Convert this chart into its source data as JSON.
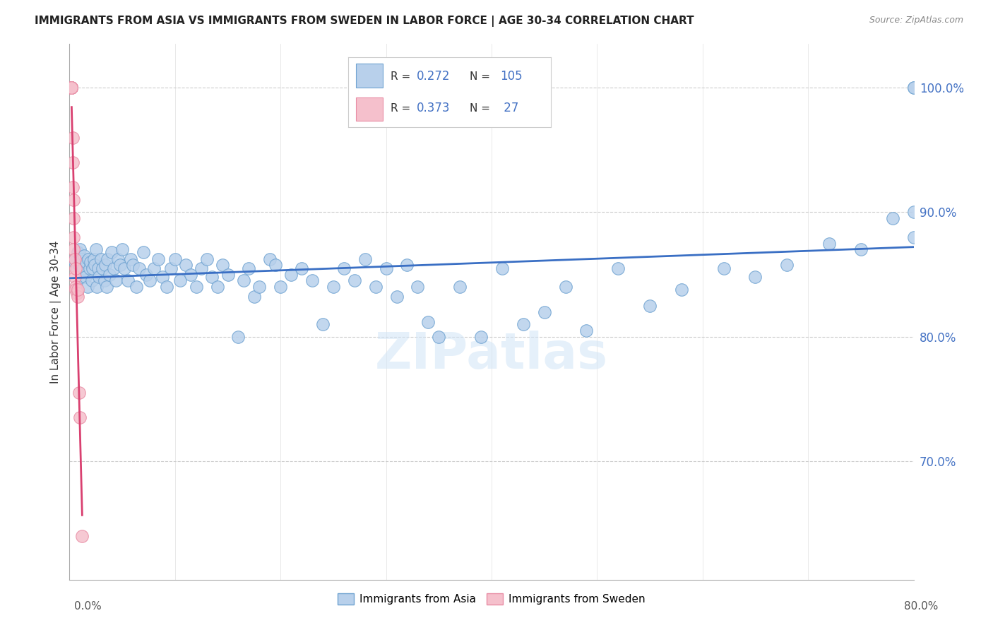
{
  "title": "IMMIGRANTS FROM ASIA VS IMMIGRANTS FROM SWEDEN IN LABOR FORCE | AGE 30-34 CORRELATION CHART",
  "source": "Source: ZipAtlas.com",
  "ylabel": "In Labor Force | Age 30-34",
  "xlim": [
    0.0,
    0.8
  ],
  "ylim": [
    0.605,
    1.035
  ],
  "ytick_values": [
    0.7,
    0.8,
    0.9,
    1.0
  ],
  "ytick_labels": [
    "70.0%",
    "80.0%",
    "90.0%",
    "100.0%"
  ],
  "x_axis_left_label": "0.0%",
  "x_axis_right_label": "80.0%",
  "blue_color": "#b8d0eb",
  "blue_edge_color": "#6fa3d1",
  "pink_color": "#f5c0cc",
  "pink_edge_color": "#e88ca4",
  "blue_line_color": "#3a6fc4",
  "pink_line_color": "#d94070",
  "R_blue": 0.272,
  "N_blue": 105,
  "R_pink": 0.373,
  "N_pink": 27,
  "watermark": "ZIPatlas",
  "legend_label_blue": "Immigrants from Asia",
  "legend_label_pink": "Immigrants from Sweden",
  "blue_x": [
    0.005,
    0.005,
    0.007,
    0.008,
    0.009,
    0.01,
    0.011,
    0.012,
    0.013,
    0.014,
    0.015,
    0.016,
    0.017,
    0.018,
    0.019,
    0.02,
    0.021,
    0.022,
    0.023,
    0.024,
    0.025,
    0.026,
    0.027,
    0.028,
    0.03,
    0.031,
    0.033,
    0.034,
    0.035,
    0.036,
    0.038,
    0.04,
    0.042,
    0.044,
    0.046,
    0.048,
    0.05,
    0.052,
    0.055,
    0.058,
    0.06,
    0.063,
    0.066,
    0.07,
    0.073,
    0.076,
    0.08,
    0.084,
    0.088,
    0.092,
    0.096,
    0.1,
    0.105,
    0.11,
    0.115,
    0.12,
    0.125,
    0.13,
    0.135,
    0.14,
    0.145,
    0.15,
    0.16,
    0.165,
    0.17,
    0.175,
    0.18,
    0.19,
    0.195,
    0.2,
    0.21,
    0.22,
    0.23,
    0.24,
    0.25,
    0.26,
    0.27,
    0.28,
    0.29,
    0.3,
    0.31,
    0.32,
    0.33,
    0.34,
    0.35,
    0.37,
    0.39,
    0.41,
    0.43,
    0.45,
    0.47,
    0.49,
    0.52,
    0.55,
    0.58,
    0.62,
    0.65,
    0.68,
    0.72,
    0.75,
    0.78,
    0.8,
    0.8,
    0.8,
    0.8
  ],
  "blue_y": [
    0.86,
    0.862,
    0.855,
    0.868,
    0.858,
    0.87,
    0.848,
    0.862,
    0.855,
    0.865,
    0.848,
    0.86,
    0.84,
    0.862,
    0.855,
    0.86,
    0.845,
    0.855,
    0.862,
    0.858,
    0.87,
    0.84,
    0.855,
    0.848,
    0.862,
    0.855,
    0.845,
    0.858,
    0.84,
    0.862,
    0.85,
    0.868,
    0.855,
    0.845,
    0.862,
    0.858,
    0.87,
    0.855,
    0.845,
    0.862,
    0.858,
    0.84,
    0.855,
    0.868,
    0.85,
    0.845,
    0.855,
    0.862,
    0.848,
    0.84,
    0.855,
    0.862,
    0.845,
    0.858,
    0.85,
    0.84,
    0.855,
    0.862,
    0.848,
    0.84,
    0.858,
    0.85,
    0.8,
    0.845,
    0.855,
    0.832,
    0.84,
    0.862,
    0.858,
    0.84,
    0.85,
    0.855,
    0.845,
    0.81,
    0.84,
    0.855,
    0.845,
    0.862,
    0.84,
    0.855,
    0.832,
    0.858,
    0.84,
    0.812,
    0.8,
    0.84,
    0.8,
    0.855,
    0.81,
    0.82,
    0.84,
    0.805,
    0.855,
    0.825,
    0.838,
    0.855,
    0.848,
    0.858,
    0.875,
    0.87,
    0.895,
    0.88,
    0.9,
    1.0,
    1.0
  ],
  "pink_x": [
    0.002,
    0.002,
    0.002,
    0.002,
    0.002,
    0.002,
    0.002,
    0.002,
    0.002,
    0.003,
    0.003,
    0.003,
    0.004,
    0.004,
    0.004,
    0.004,
    0.005,
    0.005,
    0.006,
    0.006,
    0.006,
    0.007,
    0.008,
    0.008,
    0.009,
    0.01,
    0.012
  ],
  "pink_y": [
    1.0,
    1.0,
    1.0,
    1.0,
    1.0,
    1.0,
    1.0,
    1.0,
    1.0,
    0.96,
    0.94,
    0.92,
    0.91,
    0.895,
    0.88,
    0.87,
    0.862,
    0.848,
    0.855,
    0.84,
    0.838,
    0.835,
    0.832,
    0.838,
    0.755,
    0.735,
    0.64
  ]
}
